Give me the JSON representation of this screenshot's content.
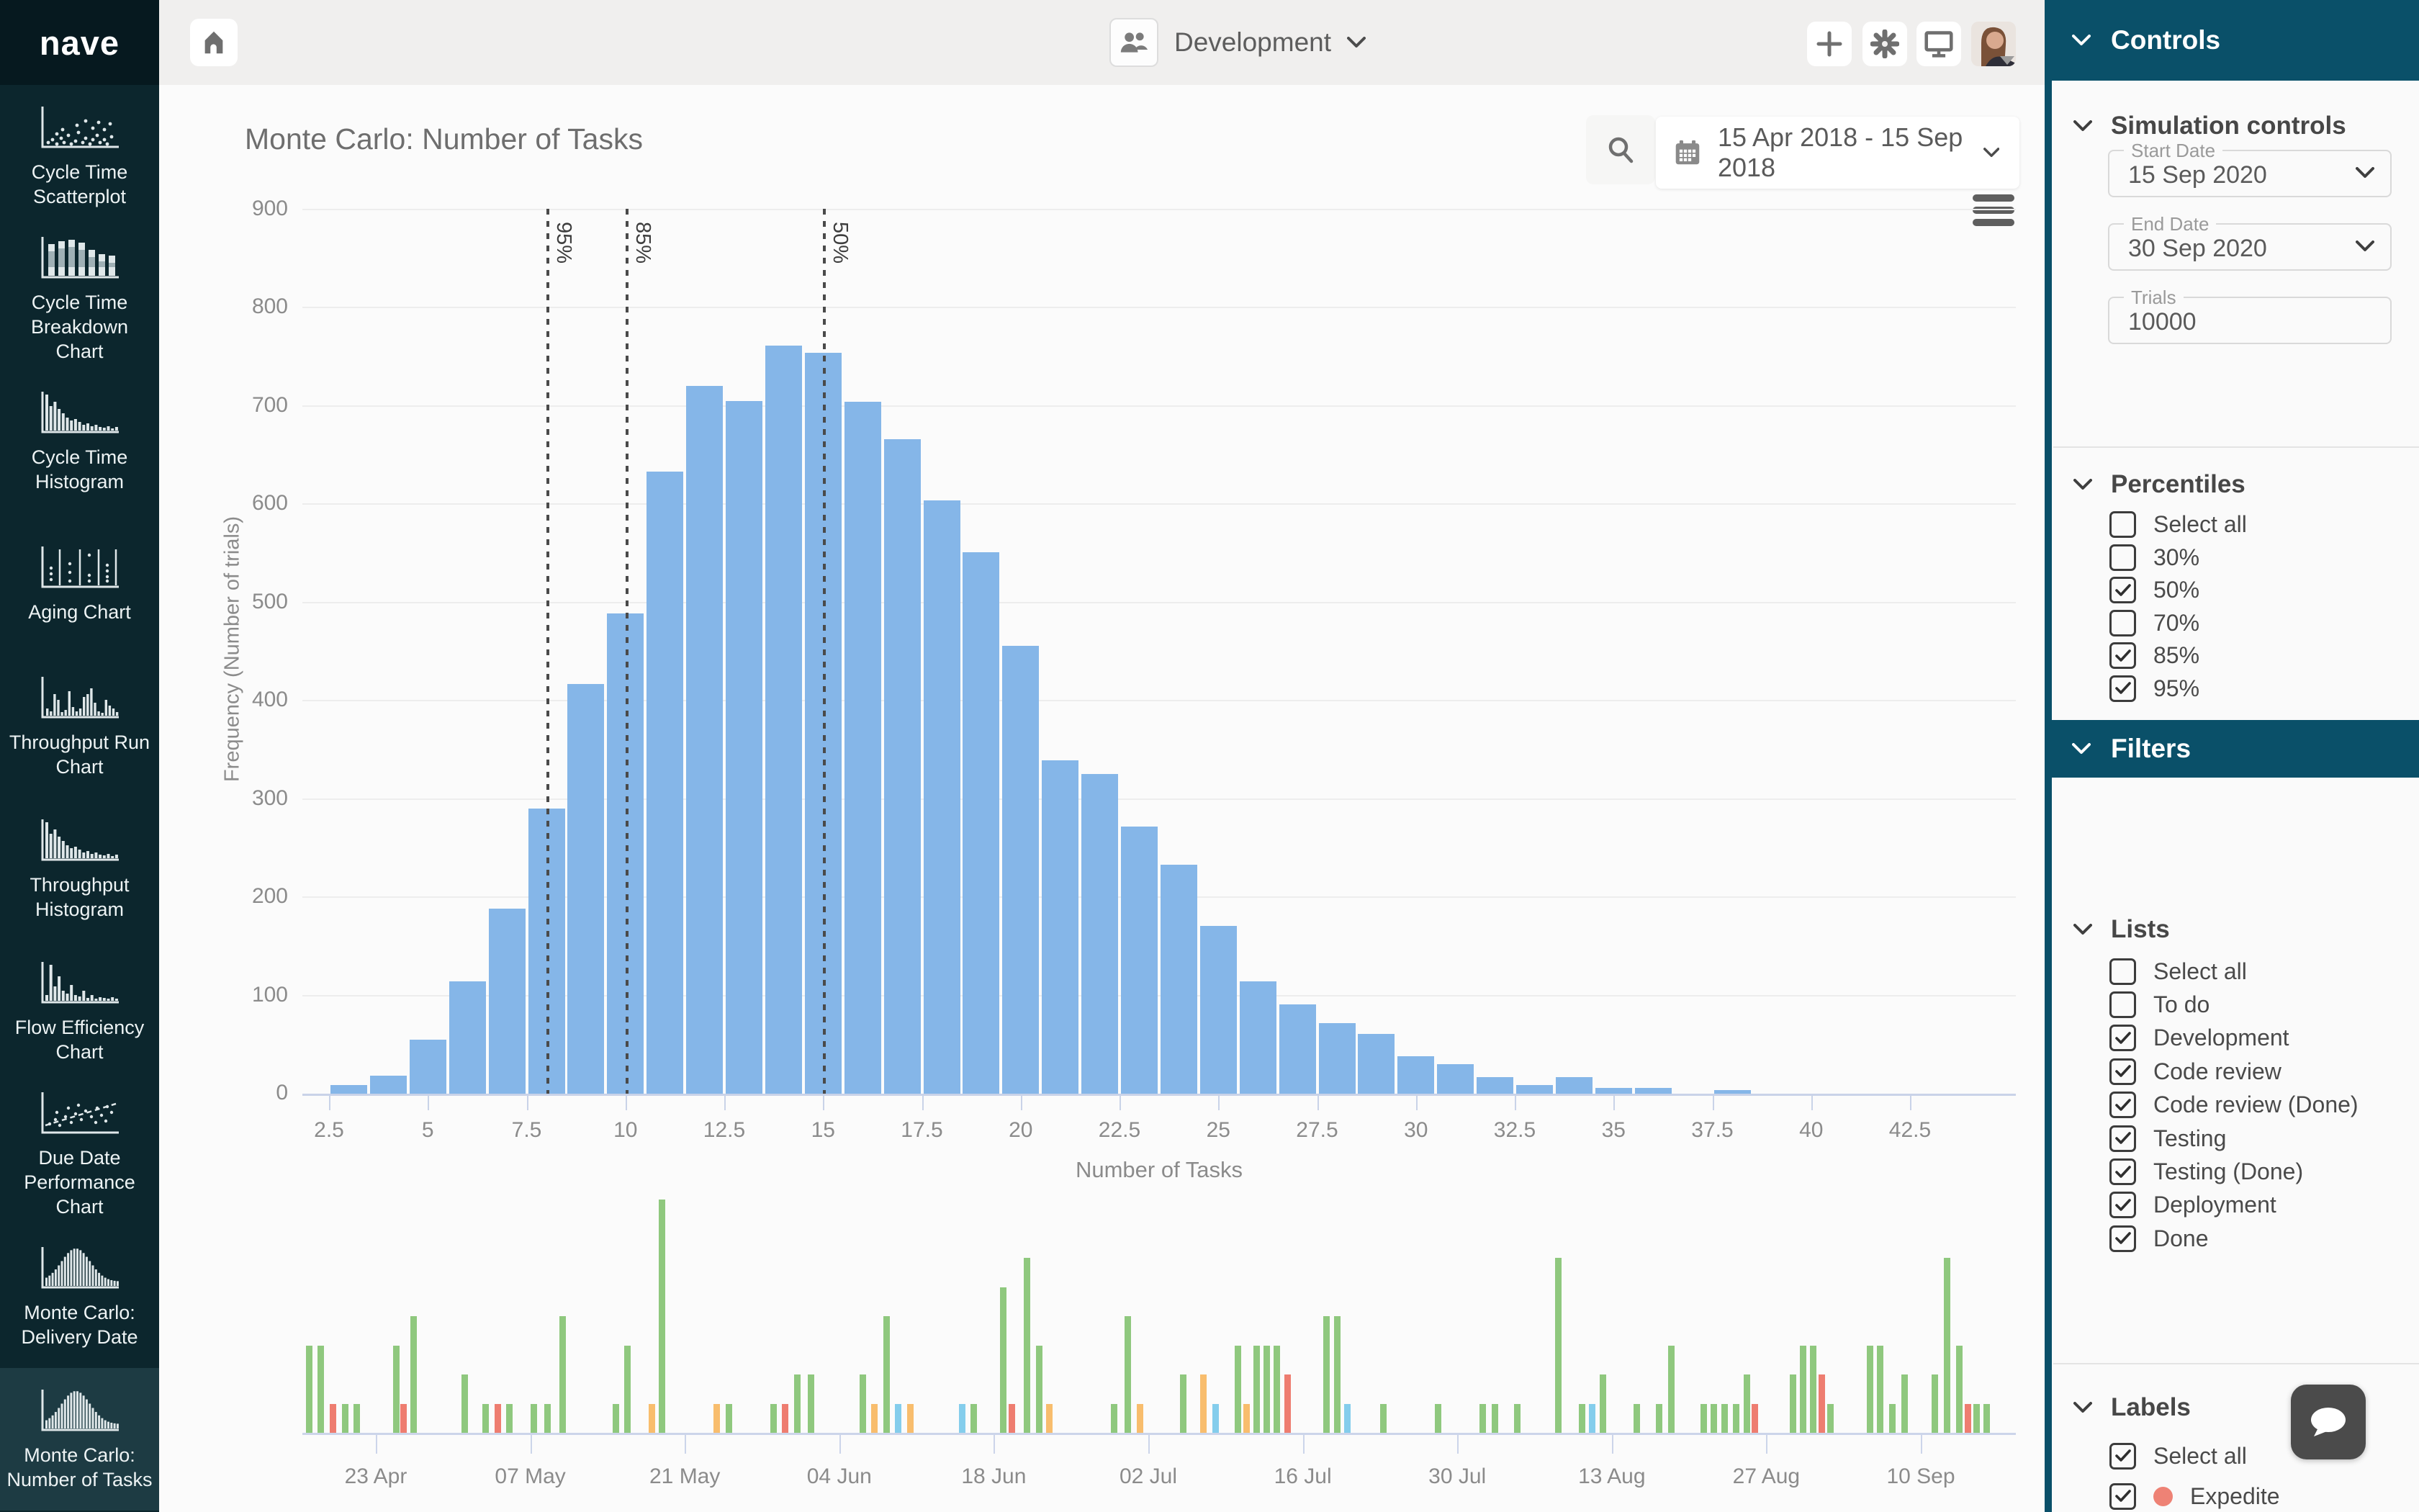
{
  "app": {
    "logo": "nave"
  },
  "sidebar": {
    "items": [
      {
        "label": "Cycle Time Scatterplot",
        "icon": "scatterplot-icon",
        "selected": false
      },
      {
        "label": "Cycle Time Breakdown Chart",
        "icon": "breakdown-bars-icon",
        "selected": false
      },
      {
        "label": "Cycle Time Histogram",
        "icon": "histogram-icon",
        "selected": false
      },
      {
        "label": "Aging Chart",
        "icon": "aging-columns-icon",
        "selected": false
      },
      {
        "label": "Throughput Run Chart",
        "icon": "run-chart-icon",
        "selected": false
      },
      {
        "label": "Throughput Histogram",
        "icon": "histogram-icon",
        "selected": false
      },
      {
        "label": "Flow Efficiency Chart",
        "icon": "flow-efficiency-icon",
        "selected": false
      },
      {
        "label": "Due Date Performance Chart",
        "icon": "scatter-trend-icon",
        "selected": false
      },
      {
        "label": "Monte Carlo: Delivery Date",
        "icon": "bell-curve-icon",
        "selected": false
      },
      {
        "label": "Monte Carlo: Number of Tasks",
        "icon": "bell-curve-icon",
        "selected": true
      }
    ]
  },
  "topbar": {
    "board": "Development"
  },
  "main": {
    "title": "Monte Carlo: Number of Tasks",
    "date_range": "15 Apr 2018 - 15 Sep 2018"
  },
  "chart_data": [
    {
      "type": "bar",
      "title": "Monte Carlo: Number of Tasks histogram",
      "xlabel": "Number of Tasks",
      "ylabel": "Frequency (Number of trials)",
      "ylim": [
        0,
        900
      ],
      "yticks": [
        0,
        100,
        200,
        300,
        400,
        500,
        600,
        700,
        800,
        900
      ],
      "xticks": [
        2.5,
        5,
        7.5,
        10,
        12.5,
        15,
        17.5,
        20,
        22.5,
        25,
        27.5,
        30,
        32.5,
        35,
        37.5,
        40,
        42.5
      ],
      "bin_centers": [
        3,
        4,
        5,
        6,
        7,
        8,
        9,
        10,
        11,
        12,
        13,
        14,
        15,
        16,
        17,
        18,
        19,
        20,
        21,
        22,
        23,
        24,
        25,
        26,
        27,
        28,
        29,
        30,
        31,
        32,
        33,
        34,
        35,
        36,
        37,
        38
      ],
      "values": [
        9,
        18,
        55,
        114,
        188,
        290,
        417,
        489,
        633,
        720,
        705,
        761,
        754,
        704,
        666,
        604,
        551,
        456,
        339,
        325,
        272,
        233,
        171,
        114,
        91,
        72,
        61,
        38,
        30,
        17,
        9,
        17,
        6,
        6,
        0,
        4
      ],
      "bar_color": "#85b6e8",
      "grid": true,
      "percentile_lines": [
        {
          "label": "95%",
          "x": 8
        },
        {
          "label": "85%",
          "x": 10
        },
        {
          "label": "50%",
          "x": 15
        }
      ]
    },
    {
      "type": "bar",
      "title": "Daily throughput timeline",
      "x_tick_labels": [
        "23 Apr",
        "07 May",
        "21 May",
        "04 Jun",
        "18 Jun",
        "02 Jul",
        "16 Jul",
        "30 Jul",
        "13 Aug",
        "27 Aug",
        "10 Sep"
      ],
      "colors": {
        "g": "#8fc87e",
        "o": "#f8bd6d",
        "r": "#ee7d70",
        "b": "#84cdec"
      },
      "bars": [
        {
          "x": 0.002,
          "h": 3,
          "c": "g"
        },
        {
          "x": 0.009,
          "h": 3,
          "c": "g"
        },
        {
          "x": 0.016,
          "h": 1,
          "c": "r"
        },
        {
          "x": 0.023,
          "h": 1,
          "c": "g"
        },
        {
          "x": 0.03,
          "h": 1,
          "c": "g"
        },
        {
          "x": 0.053,
          "h": 3,
          "c": "g"
        },
        {
          "x": 0.057,
          "h": 1,
          "c": "r"
        },
        {
          "x": 0.063,
          "h": 4,
          "c": "g"
        },
        {
          "x": 0.093,
          "h": 2,
          "c": "g"
        },
        {
          "x": 0.105,
          "h": 1,
          "c": "g"
        },
        {
          "x": 0.112,
          "h": 1,
          "c": "r"
        },
        {
          "x": 0.119,
          "h": 1,
          "c": "g"
        },
        {
          "x": 0.133,
          "h": 1,
          "c": "g"
        },
        {
          "x": 0.141,
          "h": 1,
          "c": "g"
        },
        {
          "x": 0.15,
          "h": 4,
          "c": "g"
        },
        {
          "x": 0.181,
          "h": 1,
          "c": "g"
        },
        {
          "x": 0.188,
          "h": 3,
          "c": "g"
        },
        {
          "x": 0.202,
          "h": 1,
          "c": "o"
        },
        {
          "x": 0.208,
          "h": 8,
          "c": "g"
        },
        {
          "x": 0.24,
          "h": 1,
          "c": "o"
        },
        {
          "x": 0.247,
          "h": 1,
          "c": "g"
        },
        {
          "x": 0.273,
          "h": 1,
          "c": "g"
        },
        {
          "x": 0.28,
          "h": 1,
          "c": "r"
        },
        {
          "x": 0.287,
          "h": 2,
          "c": "g"
        },
        {
          "x": 0.295,
          "h": 2,
          "c": "g"
        },
        {
          "x": 0.325,
          "h": 2,
          "c": "g"
        },
        {
          "x": 0.332,
          "h": 1,
          "c": "o"
        },
        {
          "x": 0.339,
          "h": 4,
          "c": "g"
        },
        {
          "x": 0.346,
          "h": 1,
          "c": "b"
        },
        {
          "x": 0.353,
          "h": 1,
          "c": "o"
        },
        {
          "x": 0.383,
          "h": 1,
          "c": "b"
        },
        {
          "x": 0.39,
          "h": 1,
          "c": "g"
        },
        {
          "x": 0.407,
          "h": 5,
          "c": "g"
        },
        {
          "x": 0.412,
          "h": 1,
          "c": "r"
        },
        {
          "x": 0.421,
          "h": 6,
          "c": "g"
        },
        {
          "x": 0.428,
          "h": 3,
          "c": "g"
        },
        {
          "x": 0.434,
          "h": 1,
          "c": "o"
        },
        {
          "x": 0.472,
          "h": 1,
          "c": "g"
        },
        {
          "x": 0.48,
          "h": 4,
          "c": "g"
        },
        {
          "x": 0.487,
          "h": 1,
          "c": "o"
        },
        {
          "x": 0.512,
          "h": 2,
          "c": "g"
        },
        {
          "x": 0.524,
          "h": 2,
          "c": "o"
        },
        {
          "x": 0.531,
          "h": 1,
          "c": "b"
        },
        {
          "x": 0.544,
          "h": 3,
          "c": "g"
        },
        {
          "x": 0.549,
          "h": 1,
          "c": "o"
        },
        {
          "x": 0.555,
          "h": 3,
          "c": "g"
        },
        {
          "x": 0.561,
          "h": 3,
          "c": "g"
        },
        {
          "x": 0.567,
          "h": 3,
          "c": "g"
        },
        {
          "x": 0.573,
          "h": 2,
          "c": "r"
        },
        {
          "x": 0.596,
          "h": 4,
          "c": "g"
        },
        {
          "x": 0.602,
          "h": 4,
          "c": "g"
        },
        {
          "x": 0.608,
          "h": 1,
          "c": "b"
        },
        {
          "x": 0.629,
          "h": 1,
          "c": "g"
        },
        {
          "x": 0.661,
          "h": 1,
          "c": "g"
        },
        {
          "x": 0.687,
          "h": 1,
          "c": "g"
        },
        {
          "x": 0.694,
          "h": 1,
          "c": "g"
        },
        {
          "x": 0.707,
          "h": 1,
          "c": "g"
        },
        {
          "x": 0.731,
          "h": 6,
          "c": "g"
        },
        {
          "x": 0.745,
          "h": 1,
          "c": "g"
        },
        {
          "x": 0.751,
          "h": 1,
          "c": "b"
        },
        {
          "x": 0.757,
          "h": 2,
          "c": "g"
        },
        {
          "x": 0.777,
          "h": 1,
          "c": "g"
        },
        {
          "x": 0.79,
          "h": 1,
          "c": "g"
        },
        {
          "x": 0.797,
          "h": 3,
          "c": "g"
        },
        {
          "x": 0.816,
          "h": 1,
          "c": "g"
        },
        {
          "x": 0.822,
          "h": 1,
          "c": "g"
        },
        {
          "x": 0.828,
          "h": 1,
          "c": "g"
        },
        {
          "x": 0.835,
          "h": 1,
          "c": "g"
        },
        {
          "x": 0.841,
          "h": 2,
          "c": "g"
        },
        {
          "x": 0.846,
          "h": 1,
          "c": "r"
        },
        {
          "x": 0.868,
          "h": 2,
          "c": "g"
        },
        {
          "x": 0.874,
          "h": 3,
          "c": "g"
        },
        {
          "x": 0.88,
          "h": 3,
          "c": "g"
        },
        {
          "x": 0.885,
          "h": 2,
          "c": "r"
        },
        {
          "x": 0.89,
          "h": 1,
          "c": "g"
        },
        {
          "x": 0.913,
          "h": 3,
          "c": "g"
        },
        {
          "x": 0.919,
          "h": 3,
          "c": "g"
        },
        {
          "x": 0.926,
          "h": 1,
          "c": "g"
        },
        {
          "x": 0.933,
          "h": 2,
          "c": "g"
        },
        {
          "x": 0.951,
          "h": 2,
          "c": "g"
        },
        {
          "x": 0.958,
          "h": 6,
          "c": "g"
        },
        {
          "x": 0.965,
          "h": 3,
          "c": "g"
        },
        {
          "x": 0.97,
          "h": 1,
          "c": "r"
        },
        {
          "x": 0.975,
          "h": 1,
          "c": "g"
        },
        {
          "x": 0.981,
          "h": 1,
          "c": "g"
        }
      ]
    }
  ],
  "controls_panel": {
    "header": "Controls",
    "filters_header": "Filters",
    "simulation": {
      "title": "Simulation controls",
      "fields": [
        {
          "label": "Start Date",
          "value": "15 Sep 2020",
          "dropdown": true
        },
        {
          "label": "End Date",
          "value": "30 Sep 2020",
          "dropdown": true
        },
        {
          "label": "Trials",
          "value": "10000",
          "dropdown": false
        }
      ]
    },
    "percentiles": {
      "title": "Percentiles",
      "options": [
        {
          "label": "Select all",
          "checked": false
        },
        {
          "label": "30%",
          "checked": false
        },
        {
          "label": "50%",
          "checked": true
        },
        {
          "label": "70%",
          "checked": false
        },
        {
          "label": "85%",
          "checked": true
        },
        {
          "label": "95%",
          "checked": true
        }
      ]
    },
    "lists": {
      "title": "Lists",
      "options": [
        {
          "label": "Select all",
          "checked": false
        },
        {
          "label": "To do",
          "checked": false
        },
        {
          "label": "Development",
          "checked": true
        },
        {
          "label": "Code review",
          "checked": true
        },
        {
          "label": "Code review (Done)",
          "checked": true
        },
        {
          "label": "Testing",
          "checked": true
        },
        {
          "label": "Testing (Done)",
          "checked": true
        },
        {
          "label": "Deployment",
          "checked": true
        },
        {
          "label": "Done",
          "checked": true
        }
      ]
    },
    "labels": {
      "title": "Labels",
      "options": [
        {
          "label": "Select all",
          "checked": true
        },
        {
          "label": "Expedite",
          "checked": true,
          "dot": "#ee8275"
        }
      ]
    }
  }
}
